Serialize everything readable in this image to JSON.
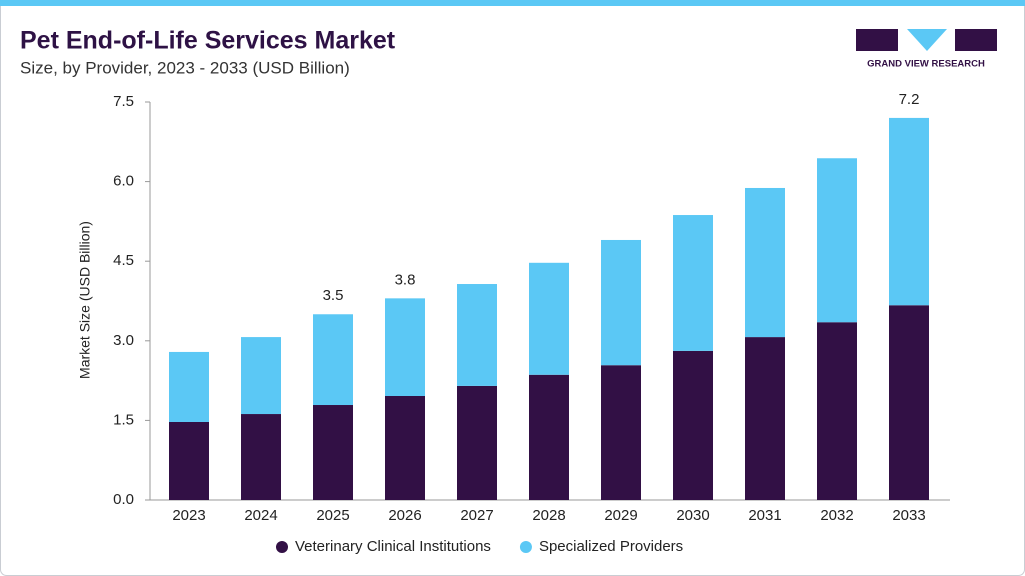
{
  "chart_data": {
    "type": "stacked_bar",
    "title": "Pet End-of-Life Services Market",
    "subtitle": "Size, by Provider, 2023 - 2033 (USD Billion)",
    "brand": "GRAND VIEW RESEARCH",
    "y_label": "Market Size (USD Billion)",
    "categories": [
      "2023",
      "2024",
      "2025",
      "2026",
      "2027",
      "2028",
      "2029",
      "2030",
      "2031",
      "2032",
      "2033"
    ],
    "series": [
      {
        "name": "Veterinary Clinical Institutions",
        "color": "#321045",
        "values": [
          1.47,
          1.62,
          1.79,
          1.96,
          2.15,
          2.36,
          2.54,
          2.81,
          3.07,
          3.35,
          3.67
        ]
      },
      {
        "name": "Specialized Providers",
        "color": "#5bc8f5",
        "values": [
          1.32,
          1.45,
          1.71,
          1.84,
          1.92,
          2.11,
          2.36,
          2.56,
          2.81,
          3.09,
          3.53
        ]
      }
    ],
    "total_labels": [
      null,
      null,
      "3.5",
      "3.8",
      null,
      null,
      null,
      null,
      null,
      null,
      "7.2"
    ],
    "ylim": [
      0,
      7.5
    ],
    "yticks": [
      {
        "value": 0,
        "label": "0.0"
      },
      1.5,
      {
        "value": 3,
        "label": "3.0"
      },
      4.5,
      {
        "value": 6,
        "label": "6.0"
      },
      7.5
    ],
    "grid": false,
    "legend": "bottom"
  }
}
